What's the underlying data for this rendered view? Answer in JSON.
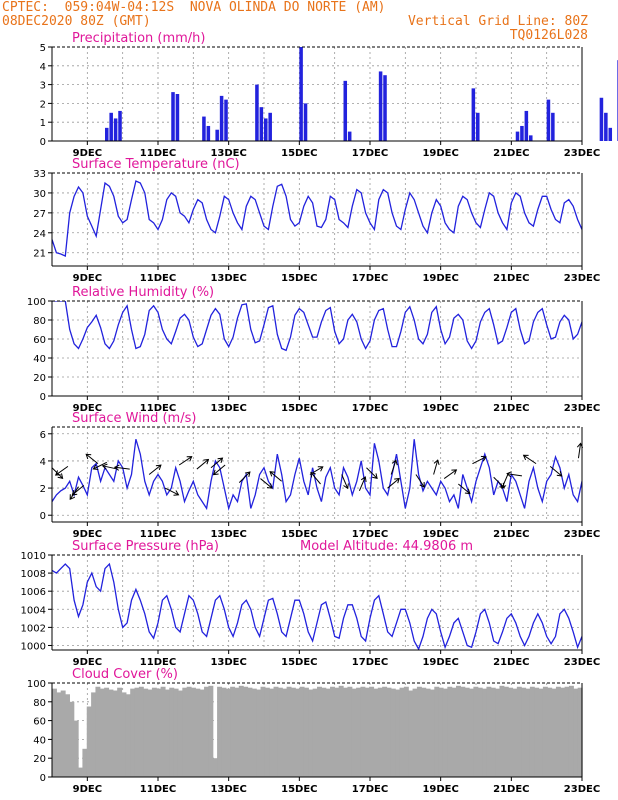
{
  "header": {
    "line1": "CPTEC:  059:04W-04:12S  NOVA OLINDA DO NORTE (AM)",
    "date": "08DEC2020 80Z (GMT)",
    "grid_note": "Vertical Grid Line: 80Z",
    "code": "TQ0126L028"
  },
  "colors": {
    "header": "#e8731a",
    "title": "#e0179a",
    "series": "#2222dd",
    "cloud": "#a9a9a9"
  },
  "x_axis": {
    "start_day": 8,
    "end_day": 23,
    "tick_days": [
      9,
      11,
      13,
      15,
      17,
      19,
      21,
      23
    ],
    "tick_labels": [
      "9DEC",
      "11DEC",
      "13DEC",
      "15DEC",
      "17DEC",
      "19DEC",
      "21DEC",
      "23DEC"
    ],
    "grid_days": [
      9,
      10,
      11,
      12,
      13,
      14,
      15,
      16,
      17,
      18,
      19,
      20,
      21,
      22
    ]
  },
  "chart_data": [
    {
      "type": "bar",
      "title": "Precipitation (mm/h)",
      "ylim": [
        0,
        5
      ],
      "yticks": [
        0,
        1,
        2,
        3,
        4,
        5
      ],
      "step_hours": 3,
      "values": [
        0,
        0,
        0,
        0,
        0,
        0,
        0,
        0,
        0,
        0,
        0,
        0,
        0.7,
        1.5,
        1.2,
        1.6,
        0,
        0,
        0,
        0,
        0,
        0,
        0,
        0,
        0,
        0,
        0,
        2.6,
        2.5,
        0,
        0,
        0,
        0,
        0,
        1.3,
        0.8,
        0,
        0.6,
        2.4,
        2.2,
        0,
        0,
        0,
        0,
        0,
        0,
        3.0,
        1.8,
        1.2,
        1.5,
        0,
        0,
        0,
        0,
        0,
        0,
        5.0,
        2.0,
        0,
        0,
        0,
        0,
        0,
        0,
        0,
        0,
        3.2,
        0.5,
        0,
        0,
        0,
        0,
        0,
        0,
        3.7,
        3.5,
        0,
        0,
        0,
        0,
        0,
        0,
        0,
        0,
        0,
        0,
        0,
        0,
        0,
        0,
        0,
        0,
        0,
        0,
        0,
        2.8,
        1.5,
        0,
        0,
        0,
        0,
        0,
        0,
        0,
        0,
        0.5,
        0.8,
        1.6,
        0.3,
        0,
        0,
        0,
        2.2,
        1.5,
        0,
        0,
        0,
        0,
        0,
        0,
        0,
        0,
        0,
        0,
        2.3,
        1.5,
        0.7,
        0,
        4.3,
        2.2,
        0,
        0,
        0,
        0,
        1.8,
        2.6,
        1.6,
        0,
        0.7,
        0,
        0,
        0,
        0,
        0.6,
        2.6,
        1.0,
        0.8,
        0.5,
        0,
        0,
        0,
        0,
        1.8,
        1.3,
        0.7
      ]
    },
    {
      "type": "line",
      "title": "Surface Temperature (nC)",
      "ylim": [
        19,
        33
      ],
      "yticks": [
        21,
        24,
        27,
        30,
        33
      ],
      "step_hours": 3,
      "values": [
        23.0,
        21.0,
        20.8,
        20.5,
        27.0,
        29.5,
        30.9,
        30.0,
        26.5,
        25.0,
        23.5,
        27.5,
        31.5,
        31.0,
        29.5,
        26.5,
        25.5,
        26.0,
        29.0,
        31.8,
        31.5,
        30.0,
        26.0,
        25.5,
        24.5,
        26.0,
        29.0,
        30.0,
        29.5,
        27.0,
        26.5,
        25.5,
        27.5,
        29.0,
        28.5,
        26.0,
        24.5,
        24.0,
        26.5,
        29.5,
        29.0,
        27.0,
        25.5,
        24.5,
        28.0,
        29.5,
        29.0,
        27.0,
        25.0,
        24.5,
        28.0,
        31.0,
        31.3,
        29.5,
        26.0,
        25.0,
        25.5,
        28.0,
        29.5,
        28.5,
        25.0,
        24.8,
        26.0,
        29.5,
        29.0,
        26.0,
        25.5,
        24.8,
        28.0,
        30.5,
        30.0,
        27.0,
        25.5,
        24.5,
        29.0,
        30.5,
        30.0,
        27.0,
        25.0,
        24.5,
        27.5,
        30.0,
        29.0,
        27.0,
        25.0,
        24.0,
        27.0,
        29.0,
        28.0,
        25.5,
        24.5,
        24.0,
        28.0,
        29.5,
        29.0,
        27.0,
        25.5,
        24.8,
        27.5,
        30.0,
        29.5,
        27.0,
        25.5,
        24.5,
        28.5,
        30.0,
        29.5,
        27.0,
        25.5,
        25.0,
        27.5,
        29.5,
        29.5,
        27.5,
        26.0,
        25.5,
        28.5,
        29.0,
        28.0,
        26.0,
        24.5,
        28.0,
        28.5,
        27.5,
        27.0,
        28.0
      ]
    },
    {
      "type": "line",
      "title": "Relative Humidity (%)",
      "ylim": [
        0,
        100
      ],
      "yticks": [
        0,
        20,
        40,
        60,
        80,
        100
      ],
      "step_hours": 3,
      "values": [
        100,
        100,
        100,
        100,
        70,
        55,
        50,
        60,
        72,
        78,
        85,
        72,
        55,
        50,
        58,
        75,
        88,
        95,
        70,
        50,
        52,
        65,
        90,
        95,
        88,
        70,
        60,
        55,
        68,
        82,
        86,
        80,
        62,
        52,
        55,
        70,
        85,
        92,
        86,
        60,
        52,
        62,
        82,
        96,
        97,
        70,
        56,
        58,
        75,
        93,
        95,
        65,
        50,
        48,
        62,
        85,
        92,
        88,
        75,
        62,
        62,
        78,
        90,
        93,
        68,
        55,
        60,
        80,
        86,
        78,
        60,
        50,
        58,
        80,
        90,
        92,
        70,
        52,
        52,
        68,
        88,
        94,
        80,
        60,
        55,
        65,
        88,
        94,
        70,
        55,
        62,
        82,
        86,
        80,
        58,
        50,
        58,
        78,
        88,
        92,
        75,
        55,
        58,
        72,
        88,
        92,
        70,
        55,
        58,
        78,
        88,
        92,
        75,
        60,
        62,
        78,
        85,
        80,
        60,
        65,
        78,
        85,
        80,
        75,
        82
      ]
    },
    {
      "type": "line",
      "title": "Surface Wind (m/s)",
      "ylim": [
        -0.5,
        6.5
      ],
      "yticks": [
        0,
        2,
        4,
        6
      ],
      "step_hours": 3,
      "values": [
        1.0,
        1.5,
        1.8,
        2.0,
        2.5,
        1.5,
        2.8,
        2.2,
        1.5,
        3.5,
        3.8,
        2.5,
        3.5,
        3.0,
        2.5,
        4.0,
        3.5,
        2.0,
        3.0,
        5.6,
        4.5,
        2.5,
        1.5,
        2.5,
        3.0,
        2.5,
        1.5,
        2.0,
        3.5,
        2.5,
        1.0,
        1.8,
        2.5,
        1.5,
        1.0,
        0.5,
        2.5,
        4.0,
        3.5,
        2.0,
        0.5,
        1.5,
        1.0,
        2.5,
        3.0,
        0.5,
        1.5,
        3.0,
        3.5,
        2.5,
        2.0,
        4.5,
        3.0,
        1.0,
        1.5,
        3.0,
        4.2,
        2.5,
        1.5,
        3.5,
        2.0,
        1.0,
        2.8,
        3.5,
        2.0,
        1.5,
        3.5,
        2.8,
        1.5,
        2.5,
        4.0,
        2.0,
        1.5,
        5.3,
        4.0,
        2.0,
        1.5,
        3.0,
        4.5,
        2.5,
        0.5,
        2.0,
        5.6,
        3.0,
        1.8,
        2.5,
        2.0,
        1.5,
        2.5,
        2.0,
        1.0,
        1.5,
        0.5,
        3.0,
        2.0,
        1.0,
        2.5,
        3.5,
        4.5,
        3.5,
        1.5,
        2.5,
        2.0,
        1.0,
        3.0,
        2.5,
        1.5,
        0.5,
        2.5,
        3.5,
        2.0,
        1.0,
        2.5,
        3.0,
        4.3,
        3.5,
        2.0,
        3.0,
        1.5,
        1.0,
        2.5,
        3.0,
        2.0,
        0.5,
        3.0
      ]
    },
    {
      "type": "line",
      "title": "Surface Pressure (hPa)",
      "annotation": "Model Altitude: 44.9806 m",
      "ylim": [
        999.5,
        1010
      ],
      "yticks": [
        1000,
        1002,
        1004,
        1006,
        1008,
        1010
      ],
      "step_hours": 3,
      "values": [
        1008.3,
        1008.0,
        1008.5,
        1009.0,
        1008.5,
        1005.0,
        1003.2,
        1004.5,
        1007.0,
        1008.0,
        1006.5,
        1006.0,
        1008.5,
        1009.0,
        1007.0,
        1004.0,
        1002.0,
        1002.5,
        1005.0,
        1006.2,
        1005.0,
        1003.5,
        1001.5,
        1000.8,
        1002.5,
        1005.0,
        1005.5,
        1004.0,
        1002.0,
        1001.5,
        1003.5,
        1005.5,
        1005.0,
        1003.5,
        1001.5,
        1001.0,
        1003.0,
        1005.0,
        1005.5,
        1004.0,
        1002.0,
        1001.0,
        1002.5,
        1004.5,
        1005.0,
        1004.0,
        1002.0,
        1001.0,
        1003.0,
        1005.0,
        1005.2,
        1003.5,
        1001.5,
        1001.0,
        1003.0,
        1005.0,
        1005.0,
        1003.5,
        1001.5,
        1000.5,
        1002.5,
        1004.5,
        1004.8,
        1003.0,
        1001.0,
        1000.8,
        1003.0,
        1004.5,
        1004.5,
        1003.0,
        1001.0,
        1000.5,
        1003.0,
        1005.0,
        1005.5,
        1003.5,
        1001.5,
        1001.0,
        1002.5,
        1004.0,
        1004.0,
        1002.5,
        1000.5,
        999.6,
        1001.0,
        1003.0,
        1004.0,
        1003.5,
        1001.5,
        999.8,
        1001.0,
        1002.5,
        1003.0,
        1001.5,
        1000.0,
        999.8,
        1001.5,
        1003.5,
        1004.0,
        1002.5,
        1000.5,
        1000.2,
        1001.5,
        1003.0,
        1003.5,
        1002.5,
        1001.0,
        1000.0,
        1001.0,
        1002.5,
        1003.5,
        1002.5,
        1001.0,
        1000.2,
        1001.0,
        1003.5,
        1004.0,
        1003.0,
        1001.5,
        999.8,
        1001.0,
        1000.0
      ]
    },
    {
      "type": "area",
      "title": "Cloud Cover (%)",
      "ylim": [
        0,
        100
      ],
      "yticks": [
        0,
        20,
        40,
        60,
        80,
        100
      ],
      "step_hours": 3,
      "values": [
        94,
        90,
        92,
        88,
        80,
        60,
        10,
        30,
        75,
        90,
        96,
        94,
        95,
        93,
        92,
        95,
        90,
        88,
        94,
        95,
        96,
        94,
        93,
        95,
        94,
        96,
        93,
        95,
        94,
        92,
        95,
        96,
        95,
        94,
        93,
        96,
        97,
        20,
        96,
        95,
        94,
        96,
        95,
        97,
        96,
        95,
        94,
        93,
        96,
        95,
        94,
        96,
        95,
        94,
        96,
        95,
        94,
        96,
        95,
        93,
        94,
        96,
        95,
        94,
        96,
        95,
        97,
        95,
        96,
        94,
        95,
        96,
        95,
        96,
        94,
        95,
        96,
        95,
        94,
        93,
        95,
        96,
        92,
        94,
        96,
        95,
        94,
        93,
        96,
        95,
        94,
        96,
        95,
        97,
        96,
        95,
        94,
        96,
        95,
        94,
        96,
        95,
        94,
        97,
        96,
        95,
        94,
        96,
        95,
        94,
        96,
        95,
        94,
        96,
        95,
        94,
        96,
        95,
        96,
        97,
        94,
        95
      ]
    },
    {
      "type": "quiver",
      "title": "Surface Wind (m/s)",
      "description_note": "",
      "vectors": [
        {
          "day": 8.0,
          "y": 3.5,
          "u": 0.6,
          "v": -0.6
        },
        {
          "day": 8.45,
          "y": 3.6,
          "u": -0.7,
          "v": -0.5
        },
        {
          "day": 8.75,
          "y": 2.1,
          "u": -0.4,
          "v": -0.6
        },
        {
          "day": 8.9,
          "y": 2.2,
          "u": -0.6,
          "v": -0.5
        },
        {
          "day": 9.3,
          "y": 3.8,
          "u": -0.5,
          "v": 0.4
        },
        {
          "day": 9.55,
          "y": 3.9,
          "u": -0.8,
          "v": -0.4
        },
        {
          "day": 9.85,
          "y": 3.4,
          "u": -0.9,
          "v": 0.2
        },
        {
          "day": 10.2,
          "y": 3.4,
          "u": -0.8,
          "v": 0.1
        },
        {
          "day": 10.75,
          "y": 3.0,
          "u": 0.5,
          "v": 0.4
        },
        {
          "day": 11.2,
          "y": 2.0,
          "u": 0.6,
          "v": -0.3
        },
        {
          "day": 11.6,
          "y": 3.7,
          "u": 0.6,
          "v": 0.4
        },
        {
          "day": 12.1,
          "y": 3.4,
          "u": 0.6,
          "v": 0.5
        },
        {
          "day": 12.5,
          "y": 3.5,
          "u": 0.6,
          "v": 0.5
        },
        {
          "day": 12.9,
          "y": 3.7,
          "u": -0.6,
          "v": -0.5
        },
        {
          "day": 13.3,
          "y": 2.4,
          "u": 0.5,
          "v": 0.5
        },
        {
          "day": 13.9,
          "y": 2.7,
          "u": 0.6,
          "v": -0.5
        },
        {
          "day": 14.5,
          "y": 2.5,
          "u": -0.6,
          "v": 0.5
        },
        {
          "day": 15.3,
          "y": 3.0,
          "u": 0.5,
          "v": 0.3
        },
        {
          "day": 15.6,
          "y": 2.3,
          "u": -0.5,
          "v": 0.6
        },
        {
          "day": 16.2,
          "y": 3.0,
          "u": 0.3,
          "v": -0.7
        },
        {
          "day": 16.7,
          "y": 1.8,
          "u": 0.3,
          "v": 0.7
        },
        {
          "day": 16.9,
          "y": 3.5,
          "u": 0.5,
          "v": -0.5
        },
        {
          "day": 17.5,
          "y": 2.0,
          "u": 0.6,
          "v": 0.5
        },
        {
          "day": 17.6,
          "y": 3.0,
          "u": 0.1,
          "v": 0.3
        },
        {
          "day": 18.3,
          "y": 3.0,
          "u": 0.4,
          "v": -0.6
        },
        {
          "day": 18.8,
          "y": 3.0,
          "u": 0.2,
          "v": 0.7
        },
        {
          "day": 19.1,
          "y": 2.7,
          "u": 0.7,
          "v": 0.5
        },
        {
          "day": 19.5,
          "y": 2.3,
          "u": 0.6,
          "v": -0.5
        },
        {
          "day": 19.9,
          "y": 3.8,
          "u": 0.6,
          "v": 0.3
        },
        {
          "day": 20.5,
          "y": 2.8,
          "u": 0.5,
          "v": -0.5
        },
        {
          "day": 20.9,
          "y": 3.0,
          "u": -0.3,
          "v": -0.7
        },
        {
          "day": 21.3,
          "y": 2.9,
          "u": -0.7,
          "v": 0.1
        },
        {
          "day": 21.7,
          "y": 3.8,
          "u": -0.6,
          "v": 0.4
        },
        {
          "day": 22.1,
          "y": 3.6,
          "u": 0.6,
          "v": -0.5
        },
        {
          "day": 22.9,
          "y": 4.2,
          "u": 0.1,
          "v": 0.7
        }
      ]
    }
  ]
}
